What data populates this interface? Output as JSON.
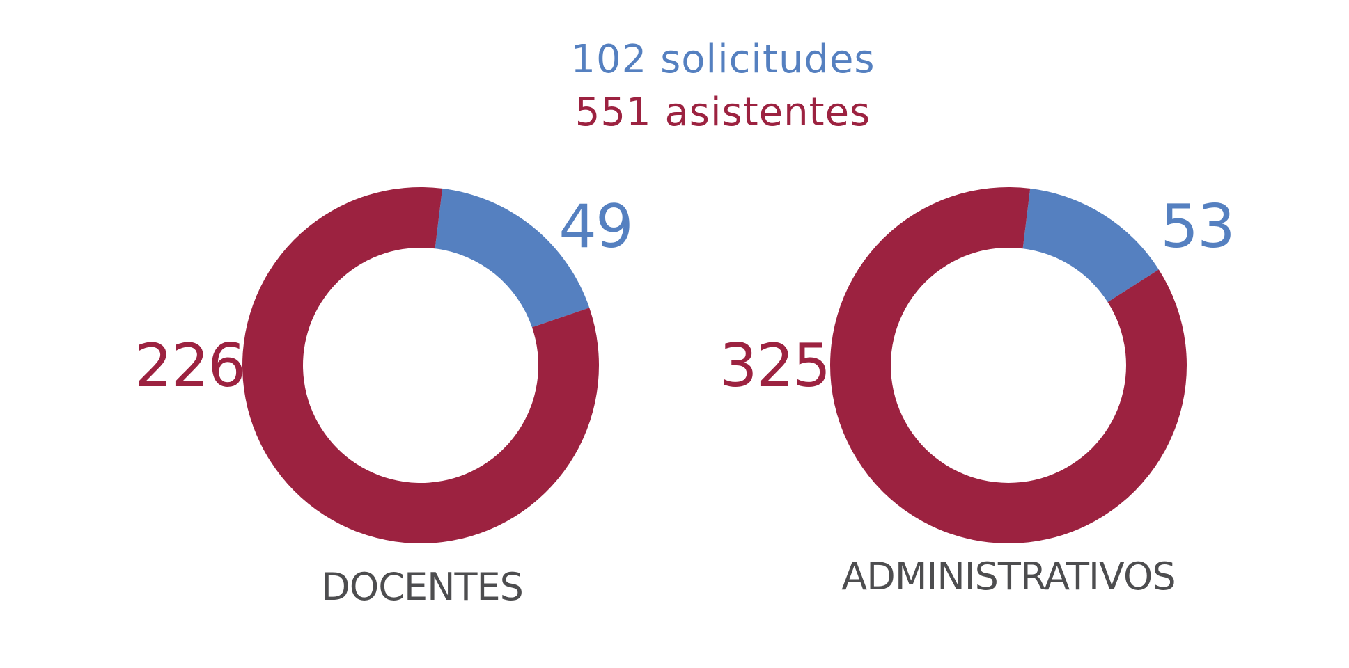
{
  "header": {
    "line1": "102 solicitudes",
    "line2": "551 asistentes"
  },
  "colors": {
    "solicitudes": "#5580c0",
    "asistentes": "#9c2240",
    "label": "#4d4d4f",
    "background": "#ffffff"
  },
  "chart_data": [
    {
      "type": "pie",
      "variant": "donut",
      "category": "DOCENTES",
      "slices": [
        {
          "key": "solicitudes",
          "value": 49,
          "label": "49"
        },
        {
          "key": "asistentes",
          "value": 226,
          "label": "226"
        }
      ]
    },
    {
      "type": "pie",
      "variant": "donut",
      "category": "ADMINISTRATIVOS",
      "slices": [
        {
          "key": "solicitudes",
          "value": 53,
          "label": "53"
        },
        {
          "key": "asistentes",
          "value": 325,
          "label": "325"
        }
      ]
    }
  ]
}
